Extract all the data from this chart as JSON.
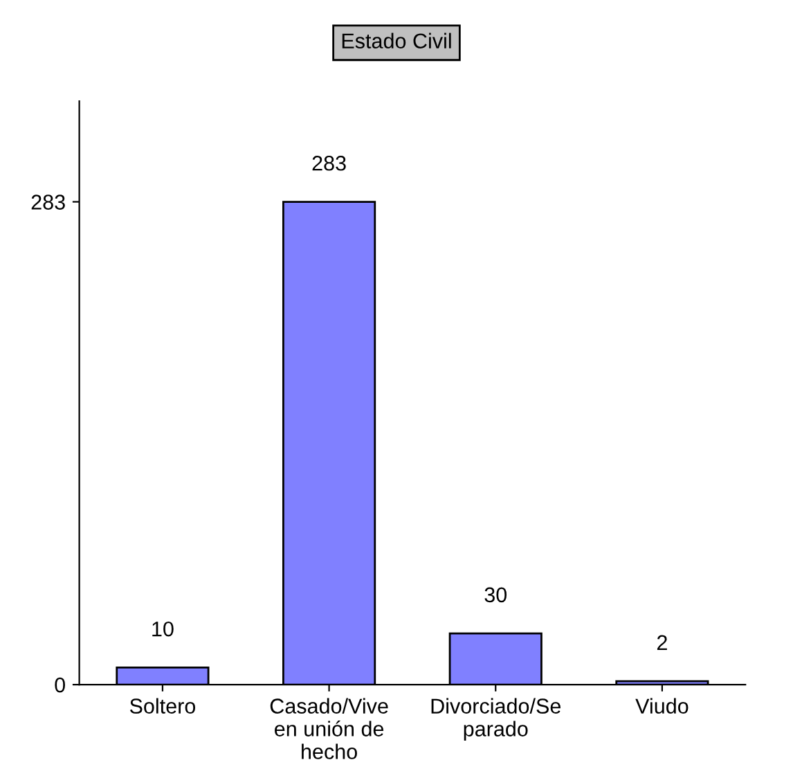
{
  "chart_data": {
    "type": "bar",
    "title": "Estado Civil",
    "categories": [
      "Soltero",
      "Casado/Vive en unión de hecho",
      "Divorciado/Se parado",
      "Viudo"
    ],
    "values": [
      10,
      283,
      30,
      2
    ],
    "color": "#8080ff",
    "ylim": [
      0,
      342
    ],
    "yticks": [
      0,
      283
    ],
    "data_labels": true,
    "grid": false,
    "legend": false
  }
}
